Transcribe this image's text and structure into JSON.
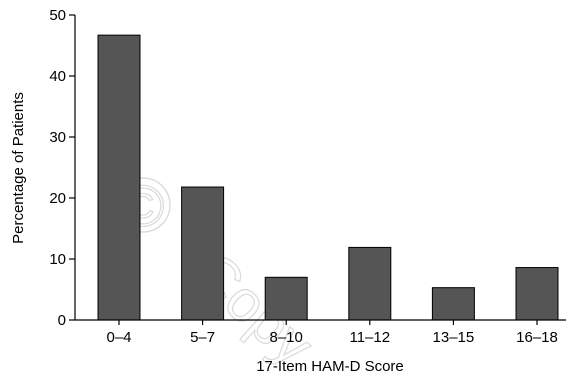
{
  "chart_data": {
    "type": "bar",
    "categories": [
      "0–4",
      "5–7",
      "8–10",
      "11–12",
      "13–15",
      "16–18"
    ],
    "values": [
      46.7,
      21.8,
      7.0,
      11.9,
      5.3,
      8.6
    ],
    "title": "",
    "xlabel": "17-Item HAM-D Score",
    "ylabel": "Percentage of Patients",
    "ylim": [
      0,
      50
    ],
    "yticks": [
      0,
      10,
      20,
      30,
      40,
      50
    ],
    "grid": false,
    "bar_color": "#555555",
    "bar_edge_color": "#000000"
  },
  "watermark": {
    "symbol": "©",
    "text": "Copy"
  }
}
